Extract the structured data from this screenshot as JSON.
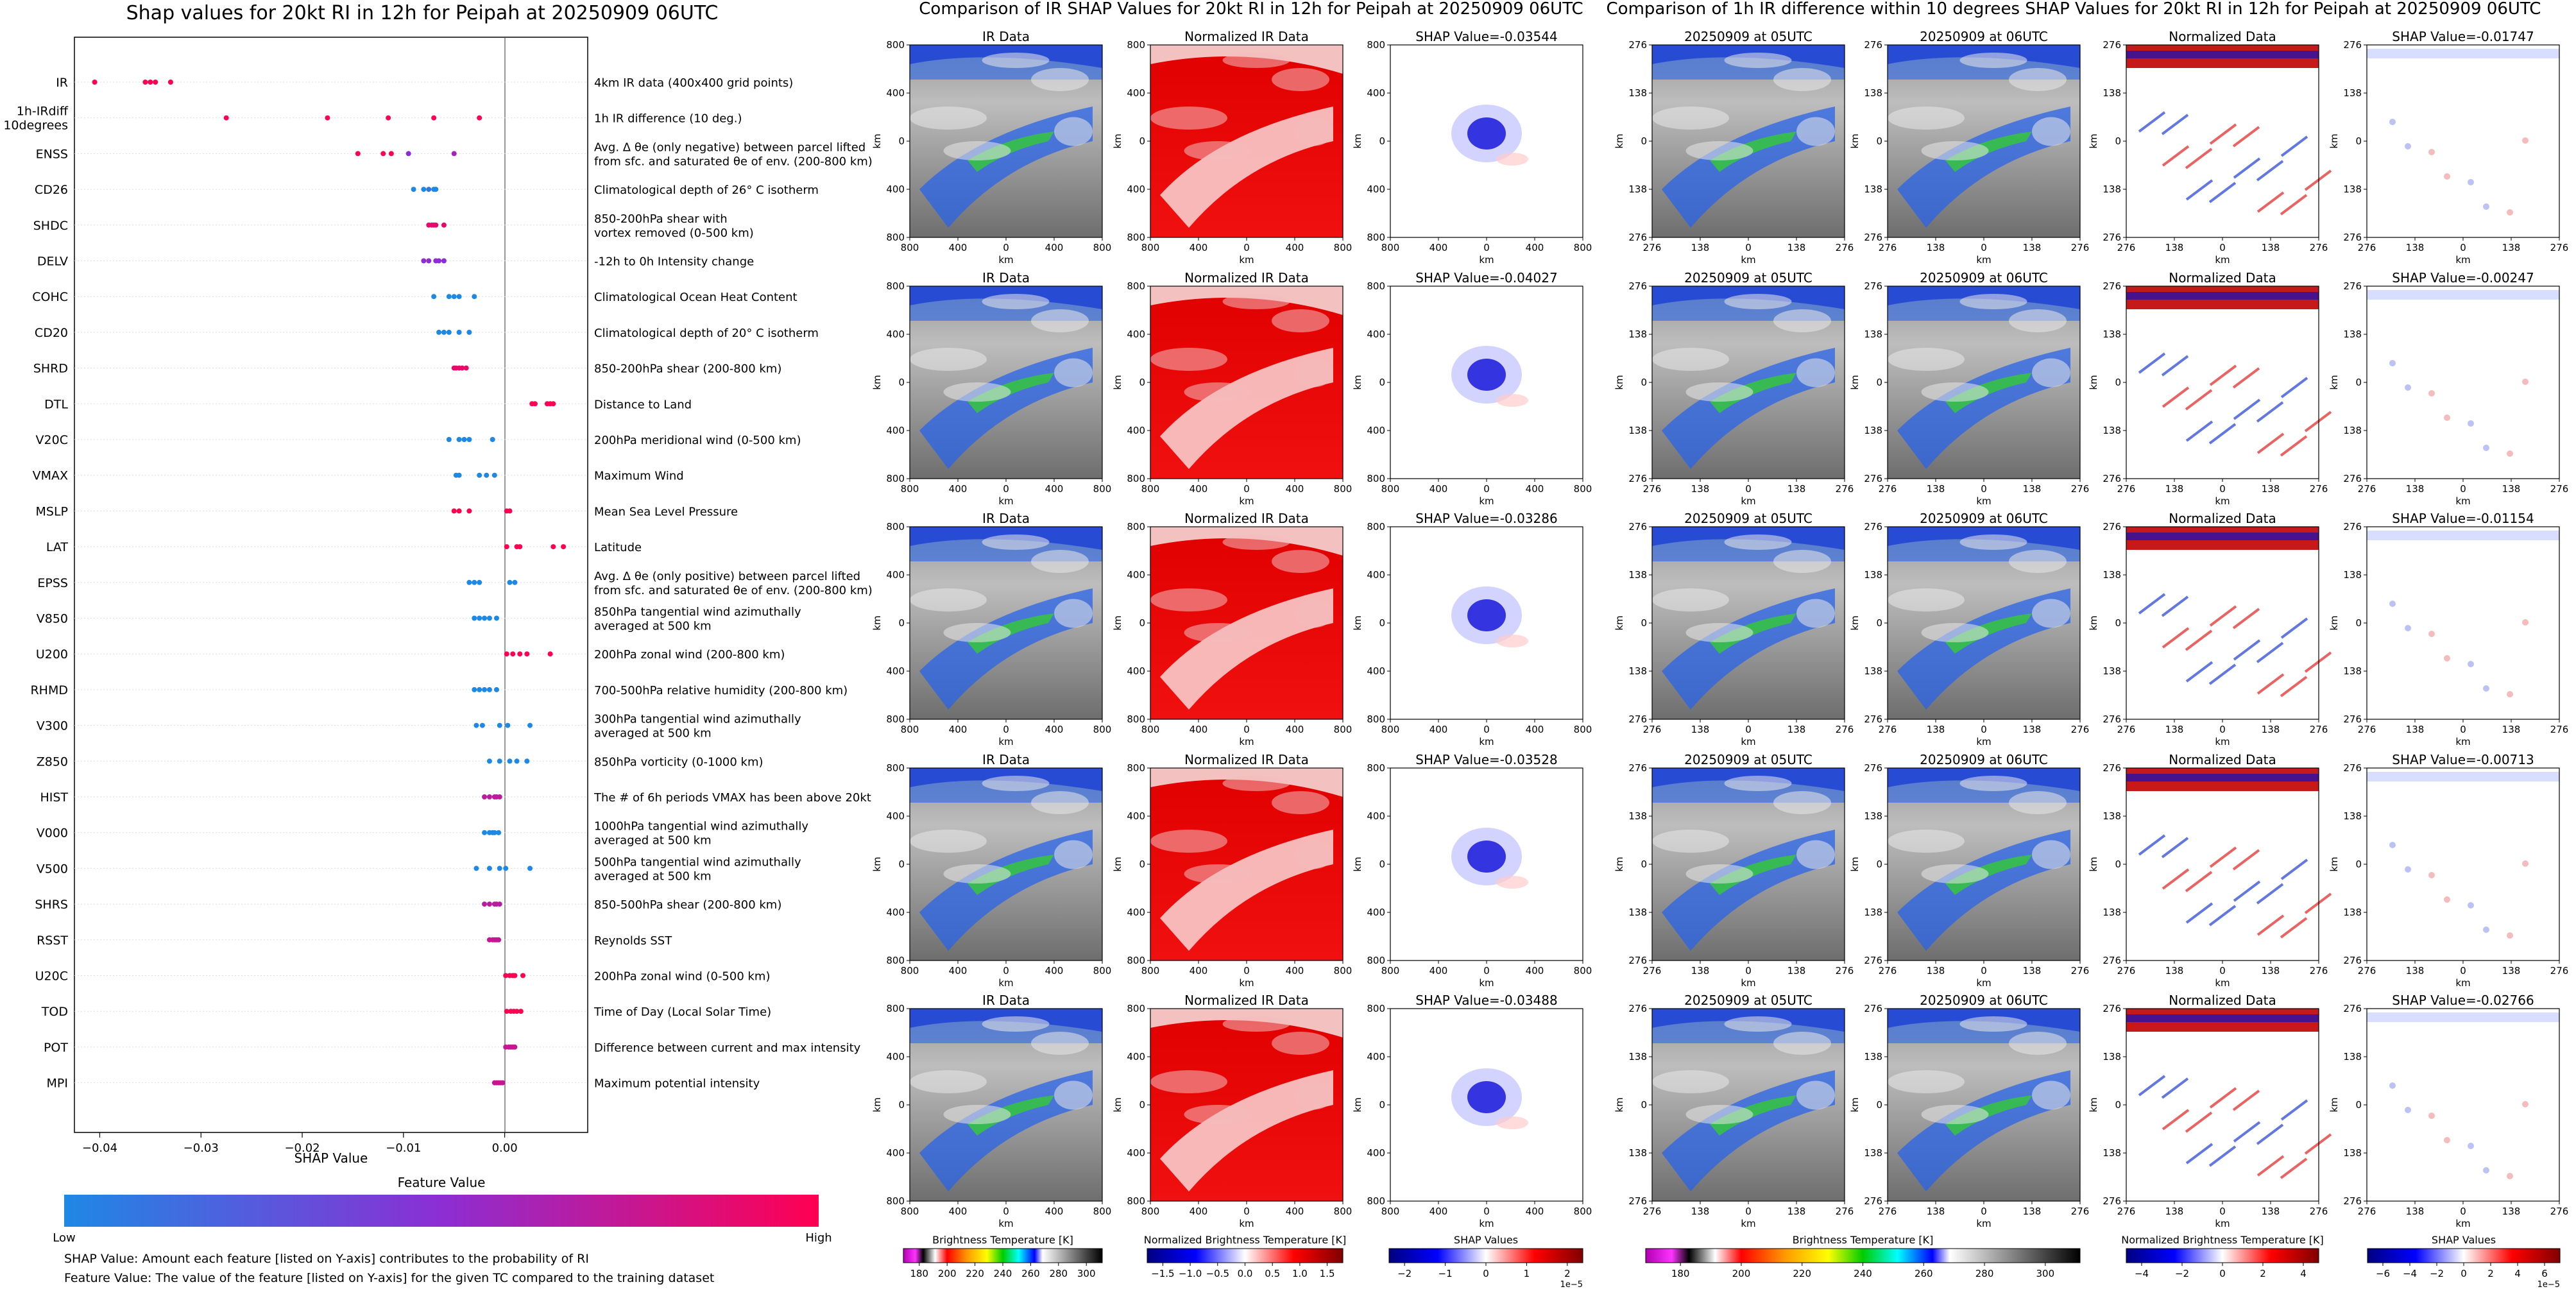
{
  "left_panel": {
    "title": "Shap values for 20kt RI in 12h for Peipah at 20250909 06UTC",
    "xlabel": "SHAP Value",
    "xticks": [
      "−0.04",
      "−0.03",
      "−0.02",
      "−0.01",
      "0.00"
    ],
    "colorbar_title": "Feature Value",
    "colorbar_low": "Low",
    "colorbar_high": "High",
    "colorbar_colors": [
      "#1e88e5",
      "#8c2ed3",
      "#ff0052"
    ],
    "notes": [
      "SHAP Value: Amount each feature [listed on Y-axis] contributes to the probability of RI",
      "Feature Value: The value of the feature [listed on Y-axis] for the given TC compared to the training dataset"
    ]
  },
  "chart_data": {
    "type": "scatter",
    "xlim": [
      -0.0425,
      0.0082
    ],
    "xlabel": "SHAP Value",
    "features": [
      {
        "code": "IR",
        "desc": [
          "4km IR data (400x400 grid points)"
        ],
        "points": [
          [
            -0.0405,
            1
          ],
          [
            -0.0355,
            1
          ],
          [
            -0.035,
            1
          ],
          [
            -0.0345,
            1
          ],
          [
            -0.033,
            1
          ]
        ]
      },
      {
        "code": "1h-IRdiff 10degrees",
        "desc": [
          "1h IR difference (10 deg.)"
        ],
        "points": [
          [
            -0.0275,
            1
          ],
          [
            -0.0175,
            1
          ],
          [
            -0.0115,
            1
          ],
          [
            -0.007,
            1
          ],
          [
            -0.0025,
            1
          ]
        ]
      },
      {
        "code": "ENSS",
        "desc": [
          "Avg. Δ θe (only negative) between parcel lifted",
          "from sfc. and saturated θe of env. (200-800 km)"
        ],
        "points": [
          [
            -0.0145,
            1
          ],
          [
            -0.012,
            1
          ],
          [
            -0.0112,
            1
          ],
          [
            -0.0095,
            0.5
          ],
          [
            -0.005,
            0.6
          ]
        ]
      },
      {
        "code": "CD26",
        "desc": [
          "Climatological depth of 26° C isotherm"
        ],
        "points": [
          [
            -0.009,
            0
          ],
          [
            -0.008,
            0
          ],
          [
            -0.0075,
            0.1
          ],
          [
            -0.007,
            0
          ],
          [
            -0.0068,
            0
          ]
        ]
      },
      {
        "code": "SHDC",
        "desc": [
          "850-200hPa shear with",
          "vortex removed (0-500 km)"
        ],
        "points": [
          [
            -0.0075,
            0.9
          ],
          [
            -0.0072,
            0.9
          ],
          [
            -0.007,
            0.9
          ],
          [
            -0.0068,
            0.9
          ],
          [
            -0.006,
            0.9
          ]
        ]
      },
      {
        "code": "DELV",
        "desc": [
          "-12h to 0h Intensity change"
        ],
        "points": [
          [
            -0.008,
            0.5
          ],
          [
            -0.0075,
            0.5
          ],
          [
            -0.0068,
            0.5
          ],
          [
            -0.0065,
            0.5
          ],
          [
            -0.006,
            0.5
          ]
        ]
      },
      {
        "code": "COHC",
        "desc": [
          "Climatological Ocean Heat Content"
        ],
        "points": [
          [
            -0.007,
            0
          ],
          [
            -0.0055,
            0
          ],
          [
            -0.005,
            0
          ],
          [
            -0.0045,
            0
          ],
          [
            -0.003,
            0
          ]
        ]
      },
      {
        "code": "CD20",
        "desc": [
          "Climatological depth of 20° C isotherm"
        ],
        "points": [
          [
            -0.0065,
            0
          ],
          [
            -0.006,
            0
          ],
          [
            -0.0055,
            0
          ],
          [
            -0.0045,
            0
          ],
          [
            -0.0035,
            0
          ]
        ]
      },
      {
        "code": "SHRD",
        "desc": [
          "850-200hPa shear (200-800 km)"
        ],
        "points": [
          [
            -0.005,
            0.9
          ],
          [
            -0.0048,
            0.9
          ],
          [
            -0.0045,
            0.9
          ],
          [
            -0.0042,
            0.9
          ],
          [
            -0.0038,
            0.9
          ]
        ]
      },
      {
        "code": "DTL",
        "desc": [
          "Distance to Land"
        ],
        "points": [
          [
            0.0027,
            1
          ],
          [
            0.003,
            1
          ],
          [
            0.0042,
            1
          ],
          [
            0.0045,
            1
          ],
          [
            0.0048,
            1
          ]
        ]
      },
      {
        "code": "V20C",
        "desc": [
          "200hPa meridional wind (0-500 km)"
        ],
        "points": [
          [
            -0.0055,
            0
          ],
          [
            -0.0045,
            0
          ],
          [
            -0.004,
            0
          ],
          [
            -0.0035,
            0
          ],
          [
            -0.0012,
            0
          ]
        ]
      },
      {
        "code": "VMAX",
        "desc": [
          "Maximum Wind"
        ],
        "points": [
          [
            -0.0048,
            0
          ],
          [
            -0.0045,
            0
          ],
          [
            -0.0025,
            0
          ],
          [
            -0.0018,
            0
          ],
          [
            -0.001,
            0
          ]
        ]
      },
      {
        "code": "MSLP",
        "desc": [
          "Mean Sea Level Pressure"
        ],
        "points": [
          [
            -0.005,
            1
          ],
          [
            -0.0045,
            1
          ],
          [
            -0.0035,
            1
          ],
          [
            0.0002,
            1
          ],
          [
            0.0005,
            1
          ]
        ]
      },
      {
        "code": "LAT",
        "desc": [
          "Latitude"
        ],
        "points": [
          [
            0.0002,
            1
          ],
          [
            0.0012,
            1
          ],
          [
            0.0015,
            1
          ],
          [
            0.0048,
            1
          ],
          [
            0.0058,
            1
          ]
        ]
      },
      {
        "code": "EPSS",
        "desc": [
          "Avg. Δ θe (only positive) between parcel lifted",
          "from sfc. and saturated θe of env. (200-800 km)"
        ],
        "points": [
          [
            -0.0035,
            0
          ],
          [
            -0.003,
            0
          ],
          [
            -0.0025,
            0
          ],
          [
            0.0005,
            0
          ],
          [
            0.001,
            0
          ]
        ]
      },
      {
        "code": "V850",
        "desc": [
          "850hPa tangential wind azimuthally",
          "averaged at 500 km"
        ],
        "points": [
          [
            -0.003,
            0
          ],
          [
            -0.0025,
            0
          ],
          [
            -0.002,
            0
          ],
          [
            -0.0015,
            0
          ],
          [
            -0.0008,
            0
          ]
        ]
      },
      {
        "code": "U200",
        "desc": [
          "200hPa zonal wind (200-800 km)"
        ],
        "points": [
          [
            0.0002,
            1
          ],
          [
            0.0008,
            1
          ],
          [
            0.0015,
            1
          ],
          [
            0.0022,
            1
          ],
          [
            0.0045,
            1
          ]
        ]
      },
      {
        "code": "RHMD",
        "desc": [
          "700-500hPa relative humidity (200-800 km)"
        ],
        "points": [
          [
            -0.003,
            0
          ],
          [
            -0.0025,
            0
          ],
          [
            -0.002,
            0
          ],
          [
            -0.0015,
            0
          ],
          [
            -0.0008,
            0
          ]
        ]
      },
      {
        "code": "V300",
        "desc": [
          "300hPa tangential wind azimuthally",
          "averaged at 500 km"
        ],
        "points": [
          [
            -0.0028,
            0
          ],
          [
            -0.0022,
            0
          ],
          [
            -0.0005,
            0
          ],
          [
            0.0003,
            0
          ],
          [
            0.0025,
            0
          ]
        ]
      },
      {
        "code": "Z850",
        "desc": [
          "850hPa vorticity (0-1000 km)"
        ],
        "points": [
          [
            -0.0015,
            0
          ],
          [
            -0.0005,
            0
          ],
          [
            0.0005,
            0
          ],
          [
            0.0012,
            0
          ],
          [
            0.0022,
            0
          ]
        ]
      },
      {
        "code": "HIST",
        "desc": [
          "The # of 6h periods VMAX has been above 20kt"
        ],
        "points": [
          [
            -0.002,
            0.7
          ],
          [
            -0.0015,
            0.7
          ],
          [
            -0.001,
            0.7
          ],
          [
            -0.0008,
            0.7
          ],
          [
            -0.0005,
            0.7
          ]
        ]
      },
      {
        "code": "V000",
        "desc": [
          "1000hPa tangential wind azimuthally",
          "averaged at 500 km"
        ],
        "points": [
          [
            -0.002,
            0
          ],
          [
            -0.0015,
            0
          ],
          [
            -0.0012,
            0
          ],
          [
            -0.001,
            0
          ],
          [
            -0.0006,
            0
          ]
        ]
      },
      {
        "code": "V500",
        "desc": [
          "500hPa tangential wind azimuthally",
          "averaged at 500 km"
        ],
        "points": [
          [
            -0.0028,
            0
          ],
          [
            -0.0015,
            0
          ],
          [
            -0.0005,
            0
          ],
          [
            0.0001,
            0
          ],
          [
            0.0025,
            0
          ]
        ]
      },
      {
        "code": "SHRS",
        "desc": [
          "850-500hPa shear (200-800 km)"
        ],
        "points": [
          [
            -0.002,
            0.7
          ],
          [
            -0.0015,
            0.7
          ],
          [
            -0.001,
            0.7
          ],
          [
            -0.0008,
            0.7
          ],
          [
            -0.0005,
            0.7
          ]
        ]
      },
      {
        "code": "RSST",
        "desc": [
          "Reynolds SST"
        ],
        "points": [
          [
            -0.0015,
            0.75
          ],
          [
            -0.0012,
            0.75
          ],
          [
            -0.001,
            0.75
          ],
          [
            -0.0008,
            0.75
          ],
          [
            -0.0006,
            0.75
          ]
        ]
      },
      {
        "code": "U20C",
        "desc": [
          "200hPa zonal wind (0-500 km)"
        ],
        "points": [
          [
            0.0001,
            1
          ],
          [
            0.0005,
            1
          ],
          [
            0.0008,
            1
          ],
          [
            0.001,
            1
          ],
          [
            0.0018,
            1
          ]
        ]
      },
      {
        "code": "TOD",
        "desc": [
          "Time of Day (Local Solar Time)"
        ],
        "points": [
          [
            0.0002,
            1
          ],
          [
            0.0006,
            1
          ],
          [
            0.0009,
            1
          ],
          [
            0.0012,
            1
          ],
          [
            0.0016,
            1
          ]
        ]
      },
      {
        "code": "POT",
        "desc": [
          "Difference between current and max intensity"
        ],
        "points": [
          [
            0.0001,
            0.75
          ],
          [
            0.0004,
            0.75
          ],
          [
            0.0006,
            0.75
          ],
          [
            0.0008,
            0.75
          ],
          [
            0.001,
            0.75
          ]
        ]
      },
      {
        "code": "MPI",
        "desc": [
          "Maximum potential intensity"
        ],
        "points": [
          [
            -0.001,
            0.75
          ],
          [
            -0.0008,
            0.75
          ],
          [
            -0.0006,
            0.75
          ],
          [
            -0.0004,
            0.75
          ],
          [
            -0.0002,
            0.75
          ]
        ]
      }
    ]
  },
  "middle_section": {
    "title": "Comparison of IR SHAP Values for 20kt RI in 12h for Peipah at 20250909 06UTC",
    "col_titles": [
      "IR Data",
      "Normalized IR Data"
    ],
    "shap_values": [
      "SHAP Value=-0.03544",
      "SHAP Value=-0.04027",
      "SHAP Value=-0.03286",
      "SHAP Value=-0.03528",
      "SHAP Value=-0.03488"
    ],
    "ticks": [
      "800",
      "400",
      "0",
      "400",
      "800"
    ],
    "axis_label": "km",
    "colorbars": [
      {
        "label": "Brightness Temperature [K]",
        "ticks": [
          "180",
          "200",
          "220",
          "240",
          "260",
          "280",
          "300"
        ]
      },
      {
        "label": "Normalized Brightness Temperature [K]",
        "ticks": [
          "−1.5",
          "−1.0",
          "−0.5",
          "0.0",
          "0.5",
          "1.0",
          "1.5"
        ]
      },
      {
        "label": "SHAP Values",
        "ticks": [
          "−2",
          "−1",
          "0",
          "1",
          "2"
        ],
        "exponent": "1e−5"
      }
    ]
  },
  "right_section": {
    "title": "Comparison of 1h IR difference within 10 degrees SHAP Values for 20kt RI in 12h for Peipah at 20250909 06UTC",
    "col_titles": [
      "20250909 at 05UTC",
      "20250909 at 06UTC",
      "Normalized Data"
    ],
    "shap_values": [
      "SHAP Value=-0.01747",
      "SHAP Value=-0.00247",
      "SHAP Value=-0.01154",
      "SHAP Value=-0.00713",
      "SHAP Value=-0.02766"
    ],
    "ticks": [
      "276",
      "138",
      "0",
      "138",
      "276"
    ],
    "axis_label": "km",
    "colorbars": [
      {
        "label": "Brightness Temperature [K]",
        "ticks": [
          "180",
          "200",
          "220",
          "240",
          "260",
          "280",
          "300"
        ]
      },
      {
        "label": "Normalized Brightness Temperature [K]",
        "ticks": [
          "−4",
          "−2",
          "0",
          "2",
          "4"
        ]
      },
      {
        "label": "SHAP Values",
        "ticks": [
          "−6",
          "−4",
          "−2",
          "0",
          "2",
          "4",
          "6"
        ],
        "exponent": "1e−5"
      }
    ]
  }
}
